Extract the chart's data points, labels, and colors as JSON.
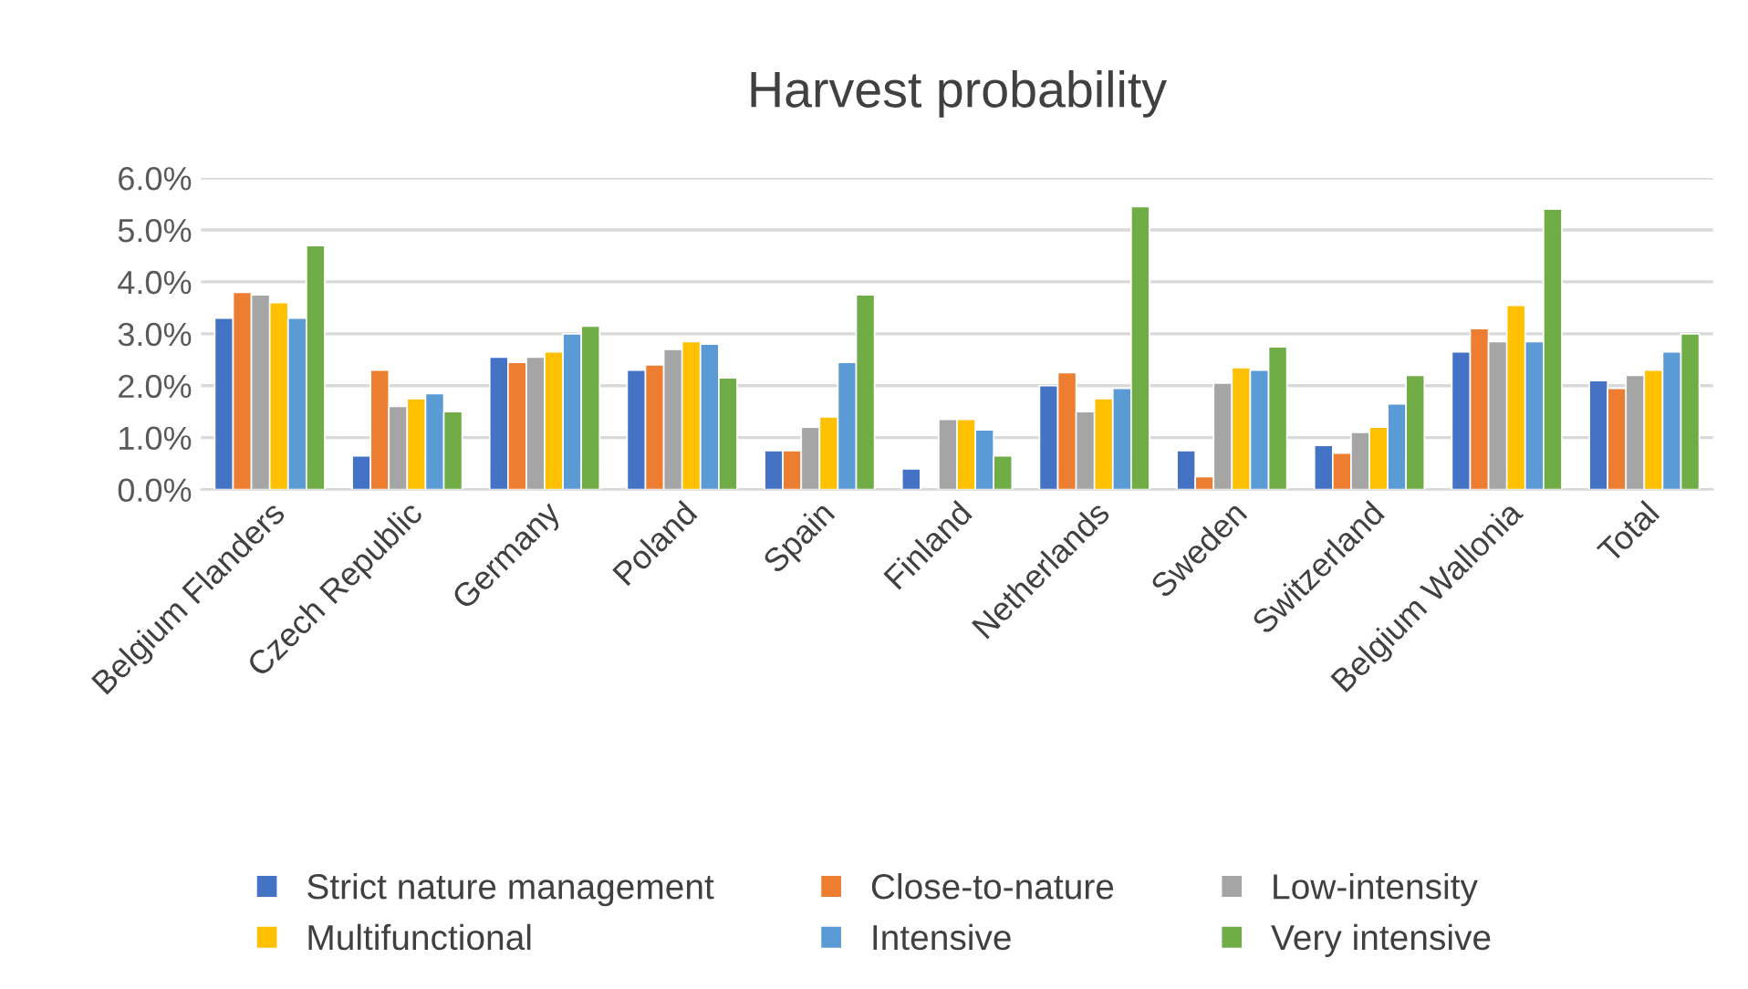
{
  "chart_data": {
    "type": "bar",
    "title": "Harvest probability",
    "categories": [
      "Belgium Flanders",
      "Czech Republic",
      "Germany",
      "Poland",
      "Spain",
      "Finland",
      "Netherlands",
      "Sweden",
      "Switzerland",
      "Belgium Wallonia",
      "Total"
    ],
    "series": [
      {
        "name": "Strict nature management",
        "color": "#4472c4",
        "values": [
          3.3,
          0.65,
          2.55,
          2.3,
          0.75,
          0.4,
          2.0,
          0.75,
          0.85,
          2.65,
          2.1
        ]
      },
      {
        "name": "Close-to-nature",
        "color": "#ed7d31",
        "values": [
          3.8,
          2.3,
          2.45,
          2.4,
          0.75,
          null,
          2.25,
          0.25,
          0.7,
          3.1,
          1.95
        ]
      },
      {
        "name": "Low-intensity",
        "color": "#a5a5a5",
        "values": [
          3.75,
          1.6,
          2.55,
          2.7,
          1.2,
          1.35,
          1.5,
          2.05,
          1.1,
          2.85,
          2.2
        ]
      },
      {
        "name": "Multifunctional",
        "color": "#ffc000",
        "values": [
          3.6,
          1.75,
          2.65,
          2.85,
          1.4,
          1.35,
          1.75,
          2.35,
          1.2,
          3.55,
          2.3
        ]
      },
      {
        "name": "Intensive",
        "color": "#5b9bd5",
        "values": [
          3.3,
          1.85,
          3.0,
          2.8,
          2.45,
          1.15,
          1.95,
          2.3,
          1.65,
          2.85,
          2.65
        ]
      },
      {
        "name": "Very intensive",
        "color": "#70ad47",
        "values": [
          4.7,
          1.5,
          3.15,
          2.15,
          3.75,
          0.65,
          5.45,
          2.75,
          2.2,
          5.4,
          3.0
        ]
      }
    ],
    "ylim": [
      0,
      6
    ],
    "yticks": [
      {
        "value": 0,
        "label": "0.0%"
      },
      {
        "value": 1,
        "label": "1.0%"
      },
      {
        "value": 2,
        "label": "2.0%"
      },
      {
        "value": 3,
        "label": "3.0%"
      },
      {
        "value": 4,
        "label": "4.0%"
      },
      {
        "value": 5,
        "label": "5.0%"
      },
      {
        "value": 6,
        "label": "6.0%"
      }
    ],
    "grid": "y",
    "legend": "bottom"
  }
}
